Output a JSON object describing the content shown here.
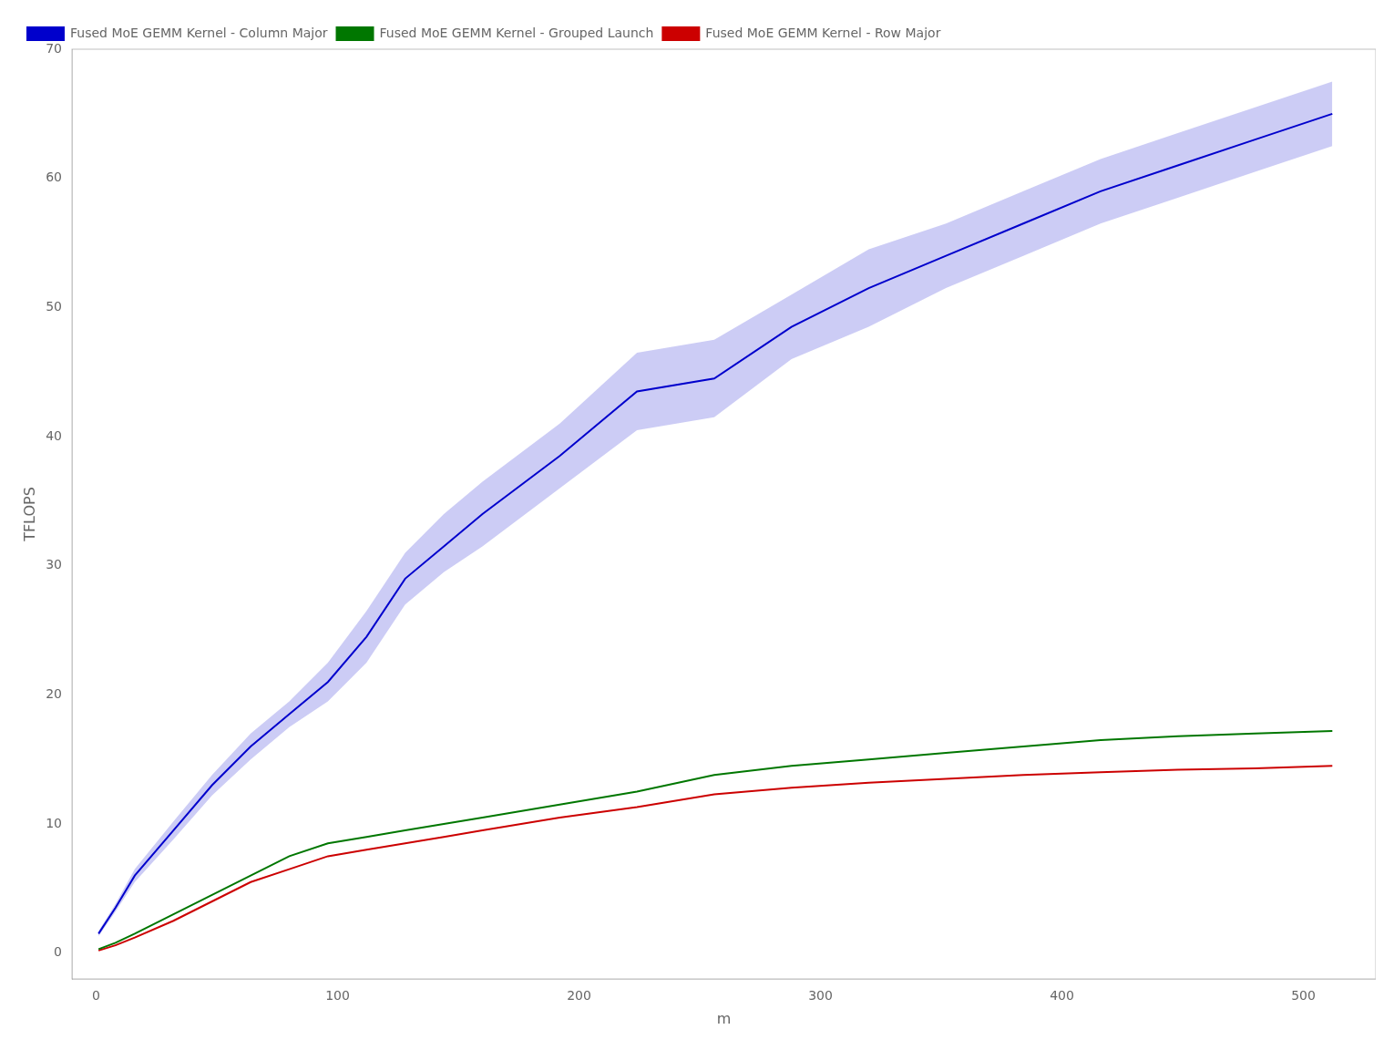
{
  "chart_data": {
    "type": "line",
    "xlabel": "m",
    "ylabel": "TFLOPS",
    "x": [
      1,
      8,
      16,
      32,
      48,
      64,
      80,
      96,
      112,
      128,
      144,
      160,
      192,
      224,
      256,
      288,
      320,
      352,
      384,
      416,
      448,
      480,
      512
    ],
    "series": [
      {
        "name": "Fused MoE GEMM Kernel - Column Major",
        "color": "#0000cc",
        "values": [
          1.5,
          3.5,
          6.0,
          9.5,
          13.0,
          16.0,
          18.5,
          21.0,
          24.5,
          29.0,
          31.5,
          34.0,
          38.5,
          43.5,
          44.5,
          48.5,
          51.5,
          54.0,
          56.5,
          59.0,
          61.0,
          63.0,
          65.0
        ],
        "ci_low": [
          1.3,
          3.2,
          5.5,
          8.8,
          12.2,
          15.0,
          17.5,
          19.5,
          22.5,
          27.0,
          29.5,
          31.5,
          36.0,
          40.5,
          41.5,
          46.0,
          48.5,
          51.5,
          54.0,
          56.5,
          58.5,
          60.5,
          62.5
        ],
        "ci_high": [
          1.7,
          3.8,
          6.5,
          10.2,
          13.8,
          17.0,
          19.5,
          22.5,
          26.5,
          31.0,
          34.0,
          36.5,
          41.0,
          46.5,
          47.5,
          51.0,
          54.5,
          56.5,
          59.0,
          61.5,
          63.5,
          65.5,
          67.5
        ]
      },
      {
        "name": "Fused MoE GEMM Kernel - Grouped Launch",
        "color": "#007700",
        "values": [
          0.3,
          0.8,
          1.5,
          3.0,
          4.5,
          6.0,
          7.5,
          8.5,
          9.0,
          9.5,
          10.0,
          10.5,
          11.5,
          12.5,
          13.8,
          14.5,
          15.0,
          15.5,
          16.0,
          16.5,
          16.8,
          17.0,
          17.2
        ]
      },
      {
        "name": "Fused MoE GEMM Kernel - Row Major",
        "color": "#cc0000",
        "values": [
          0.2,
          0.6,
          1.2,
          2.5,
          4.0,
          5.5,
          6.5,
          7.5,
          8.0,
          8.5,
          9.0,
          9.5,
          10.5,
          11.3,
          12.3,
          12.8,
          13.2,
          13.5,
          13.8,
          14.0,
          14.2,
          14.3,
          14.5
        ]
      }
    ],
    "xlim": [
      -10,
      530
    ],
    "ylim": [
      -2,
      70
    ],
    "xticks": [
      0,
      100,
      200,
      300,
      400,
      500
    ],
    "yticks": [
      0,
      10,
      20,
      30,
      40,
      50,
      60,
      70
    ],
    "grid": false,
    "legend": "upper left"
  }
}
